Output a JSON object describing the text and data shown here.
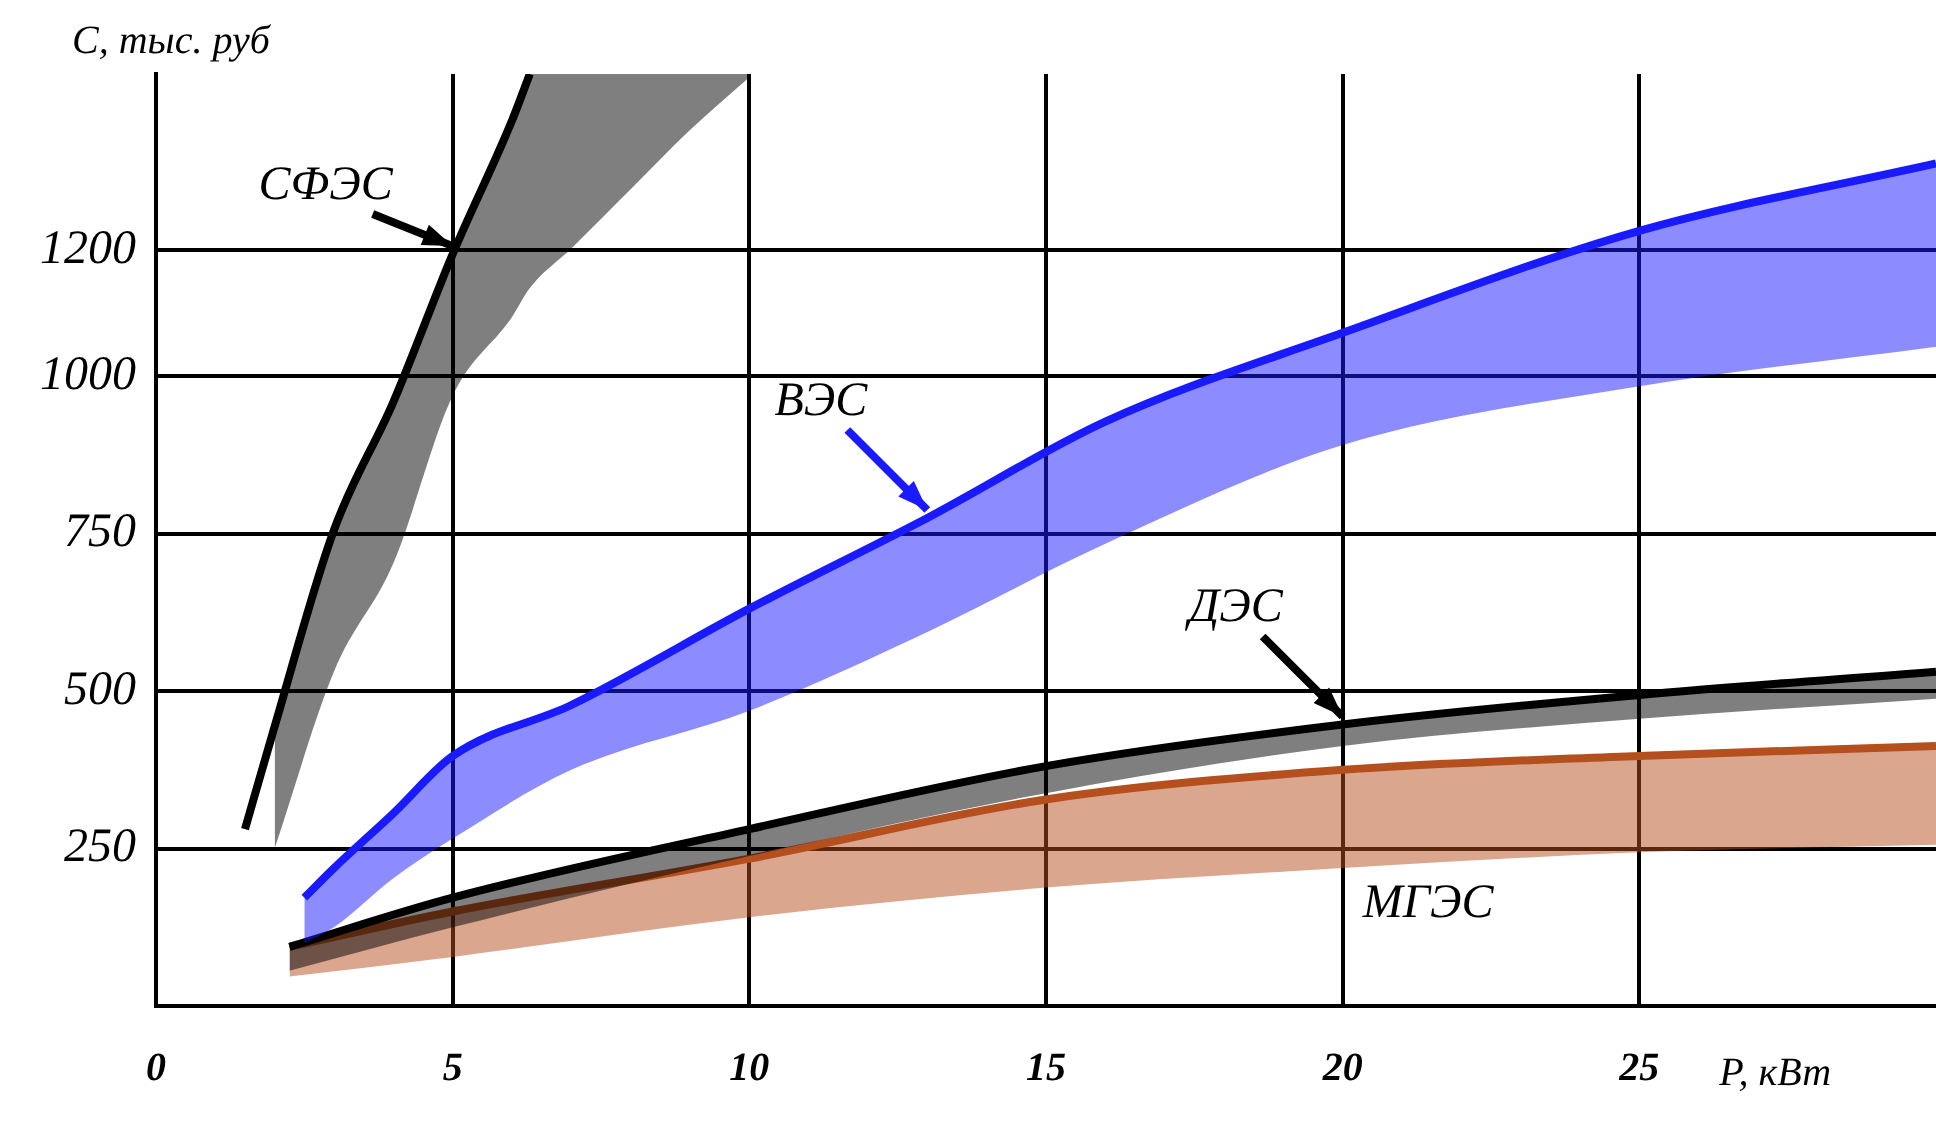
{
  "chart_data": {
    "type": "line",
    "xlabel": "P, кВт",
    "ylabel": "C, тыс. руб",
    "xlim": [
      0,
      30
    ],
    "xticks": [
      0,
      5,
      10,
      15,
      20,
      25
    ],
    "ylim": [
      0,
      1480
    ],
    "yticks": [
      250,
      500,
      750,
      1000,
      1200
    ],
    "grid": true,
    "legend": false,
    "marker": "none",
    "series": [
      {
        "name": "СФЭС",
        "color": "#000000",
        "x": [
          1.5,
          2,
          3,
          4,
          5,
          6,
          6.3,
          7,
          8,
          9,
          10
        ],
        "values": [
          281,
          444,
          756,
          959,
          1194,
          1406,
          1480,
          null,
          null,
          null,
          null
        ],
        "upper": [
          null,
          444,
          756,
          959,
          1194,
          1406,
          1480,
          1480,
          1480,
          1480,
          1480
        ],
        "lower": [
          null,
          250,
          531,
          703,
          969,
          1094,
          1140,
          1203,
          1297,
          1391,
          1475
        ]
      },
      {
        "name": "ВЭС",
        "color": "#1a1aff",
        "x": [
          2.5,
          3,
          4,
          5,
          7,
          10,
          13,
          16,
          20,
          25,
          30
        ],
        "values": [
          172,
          219,
          306,
          397,
          478,
          631,
          775,
          928,
          1069,
          1231,
          1338
        ],
        "upper": [
          172,
          219,
          306,
          397,
          478,
          631,
          775,
          928,
          1069,
          1231,
          1338
        ],
        "lower": [
          100,
          125,
          203,
          266,
          375,
          469,
          594,
          734,
          891,
          984,
          1047
        ]
      },
      {
        "name": "ДЭС",
        "color": "#000000",
        "x": [
          2.25,
          5,
          10,
          15,
          20,
          25,
          30
        ],
        "values": [
          94,
          172,
          281,
          381,
          447,
          494,
          531
        ],
        "upper": [
          94,
          172,
          281,
          381,
          447,
          494,
          531
        ],
        "lower": [
          56,
          125,
          238,
          338,
          413,
          456,
          488
        ]
      },
      {
        "name": "МГЭС",
        "color": "#b5501e",
        "x": [
          2.25,
          5,
          10,
          15,
          20,
          25,
          30
        ],
        "values": [
          94,
          150,
          234,
          328,
          375,
          397,
          413
        ],
        "upper": [
          94,
          150,
          234,
          328,
          375,
          397,
          413
        ],
        "lower": [
          47,
          78,
          141,
          188,
          219,
          244,
          256
        ]
      }
    ]
  }
}
